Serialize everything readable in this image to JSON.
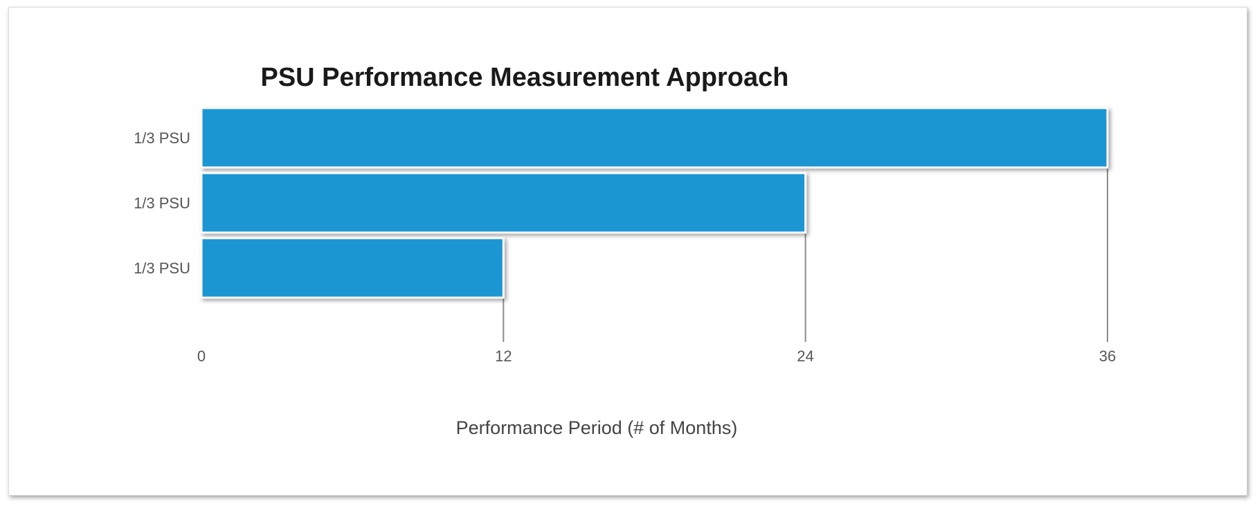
{
  "chart_data": {
    "type": "bar",
    "orientation": "horizontal",
    "title": "PSU Performance Measurement Approach",
    "xlabel": "Performance Period (# of Months)",
    "ylabel": "",
    "categories": [
      "1/3 PSU",
      "1/3 PSU",
      "1/3 PSU"
    ],
    "values": [
      36,
      24,
      12
    ],
    "xlim": [
      0,
      36
    ],
    "xticks": [
      0,
      12,
      24,
      36
    ],
    "grid": false,
    "legend": "none",
    "colors": {
      "bar": "#1f96d3",
      "bar_outline": "#ffffff",
      "tick_line": "#8c8c8c"
    }
  }
}
